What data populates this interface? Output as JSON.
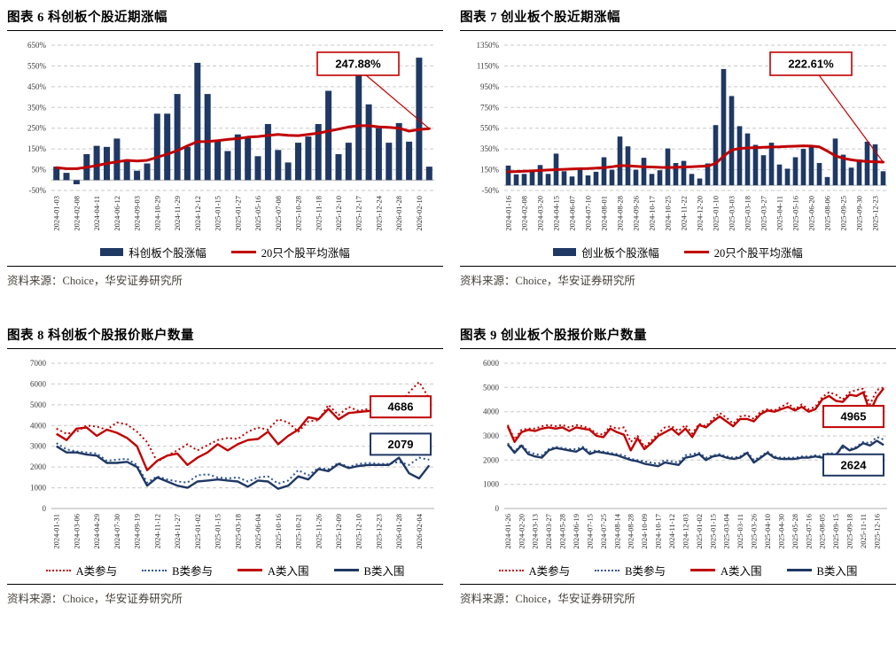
{
  "colors": {
    "navy": "#1f3864",
    "red": "#c00000",
    "blue_dotted": "#2f5496",
    "grid": "#c9c9c9",
    "axis": "#aeaeae"
  },
  "chart_data": [
    {
      "id": "fig6",
      "title": "图表 6 科创板个股近期涨幅",
      "source": "资料来源：Choice，华安证券研究所",
      "type": "bar",
      "ylim": [
        -50,
        650
      ],
      "ystep": 100,
      "ysuffix": "%",
      "grid": true,
      "legend_position": "bottom",
      "bar_color": "#1f3864",
      "line_color": "#c00000",
      "x_labels": [
        "2024-01-03",
        "2024-02-08",
        "2024-04-11",
        "2024-06-12",
        "2024-09-03",
        "2024-10-29",
        "2024-11-29",
        "2024-12-12",
        "2025-01-15",
        "2025-01-27",
        "2025-05-16",
        "2025-07-08",
        "2025-10-28",
        "2025-11-18",
        "2025-12-10",
        "2025-12-17",
        "2025-12-24",
        "2026-01-28",
        "2026-02-10"
      ],
      "bars": [
        65,
        35,
        -20,
        125,
        165,
        160,
        200,
        100,
        45,
        80,
        320,
        320,
        415,
        160,
        565,
        415,
        195,
        140,
        220,
        205,
        115,
        270,
        145,
        85,
        180,
        210,
        270,
        430,
        125,
        180,
        600,
        365,
        250,
        180,
        275,
        185,
        590,
        65
      ],
      "line": [
        60,
        55,
        55,
        62,
        70,
        80,
        88,
        95,
        92,
        95,
        110,
        125,
        142,
        165,
        185,
        186,
        190,
        196,
        200,
        207,
        210,
        215,
        220,
        216,
        214,
        220,
        226,
        236,
        246,
        256,
        262,
        262,
        256,
        254,
        250,
        236,
        244,
        248
      ],
      "line_name": "20只个股平均涨幅",
      "bars_name": "科创板个股涨幅",
      "annotations": [
        {
          "text": "247.88%",
          "color": "#c00000"
        }
      ],
      "legend": [
        {
          "label": "科创板个股涨幅",
          "swatch": "bar",
          "color": "#1f3864"
        },
        {
          "label": "20只个股平均涨幅",
          "swatch": "line",
          "color": "#c00000"
        }
      ]
    },
    {
      "id": "fig7",
      "title": "图表 7 创业板个股近期涨幅",
      "source": "资料来源：Choice，华安证券研究所",
      "type": "bar",
      "ylim": [
        -50,
        1350
      ],
      "ystep": 200,
      "ysuffix": "%",
      "grid": true,
      "legend_position": "bottom",
      "bar_color": "#1f3864",
      "line_color": "#c00000",
      "x_labels": [
        "2024-01-16",
        "2024-02-08",
        "2024-03-20",
        "2024-04-15",
        "2024-06-07",
        "2024-07-10",
        "2024-08-01",
        "2024-08-28",
        "2024-09-26",
        "2024-10-17",
        "2024-10-25",
        "2024-11-22",
        "2024-12-20",
        "2025-01-10",
        "2025-03-03",
        "2025-03-18",
        "2025-03-27",
        "2025-04-11",
        "2025-05-16",
        "2025-06-20",
        "2025-08-06",
        "2025-09-25",
        "2025-09-30",
        "2025-12-23"
      ],
      "bars": [
        190,
        105,
        110,
        135,
        195,
        110,
        305,
        135,
        85,
        165,
        95,
        130,
        270,
        150,
        470,
        375,
        150,
        265,
        110,
        145,
        355,
        215,
        235,
        110,
        65,
        210,
        580,
        1120,
        860,
        570,
        500,
        390,
        290,
        410,
        200,
        160,
        270,
        350,
        385,
        215,
        80,
        450,
        295,
        170,
        250,
        420,
        395,
        135
      ],
      "line": [
        130,
        133,
        136,
        139,
        143,
        147,
        151,
        154,
        157,
        160,
        162,
        165,
        170,
        178,
        190,
        188,
        183,
        179,
        176,
        173,
        171,
        173,
        176,
        179,
        182,
        186,
        210,
        280,
        340,
        355,
        360,
        363,
        366,
        369,
        371,
        374,
        377,
        380,
        378,
        370,
        330,
        285,
        260,
        245,
        235,
        230,
        227,
        223
      ],
      "line_name": "20只个股平均涨幅",
      "bars_name": "创业板个股涨幅",
      "annotations": [
        {
          "text": "222.61%",
          "color": "#c00000"
        }
      ],
      "legend": [
        {
          "label": "创业板个股涨幅",
          "swatch": "bar",
          "color": "#1f3864"
        },
        {
          "label": "20只个股平均涨幅",
          "swatch": "line",
          "color": "#c00000"
        }
      ]
    },
    {
      "id": "fig8",
      "title": "图表 8 科创板个股报价账户数量",
      "source": "资料来源：Choice，华安证券研究所",
      "type": "line",
      "ylim": [
        0,
        7000
      ],
      "ystep": 1000,
      "ysuffix": "",
      "grid": true,
      "legend_position": "bottom",
      "x_labels": [
        "2024-01-31",
        "2024-03-06",
        "2024-04-29",
        "2024-07-30",
        "2024-09-19",
        "2024-11-12",
        "2024-11-27",
        "2025-01-02",
        "2025-01-15",
        "2025-03-18",
        "2025-06-04",
        "2025-10-16",
        "2025-10-21",
        "2025-11-26",
        "2025-12-09",
        "2025-12-10",
        "2025-12-23",
        "2026-01-28",
        "2026-02-04"
      ],
      "series": [
        {
          "name": "A类参与",
          "style": "dotted",
          "color": "#c00000",
          "values": [
            3850,
            3600,
            3700,
            4000,
            3950,
            3800,
            4150,
            4050,
            3700,
            3200,
            2250,
            2550,
            2800,
            3100,
            2800,
            3050,
            3300,
            3400,
            3350,
            3700,
            3900,
            3800,
            4300,
            4150,
            3700,
            4200,
            4250,
            5000,
            4500,
            4900,
            4700,
            4800,
            4850,
            4900,
            5000,
            5600,
            6100,
            5300
          ]
        },
        {
          "name": "B类参与",
          "style": "dotted",
          "color": "#2f5496",
          "values": [
            3150,
            2850,
            2750,
            2700,
            2650,
            2300,
            2350,
            2400,
            2100,
            1250,
            1550,
            1400,
            1300,
            1250,
            1600,
            1650,
            1500,
            1450,
            1500,
            1300,
            1500,
            1550,
            1200,
            1350,
            1850,
            1600,
            1950,
            1900,
            2200,
            2000,
            2150,
            2200,
            2150,
            2150,
            2250,
            2100,
            2450,
            2350
          ]
        },
        {
          "name": "A类入围",
          "style": "solid",
          "color": "#c00000",
          "values": [
            3600,
            3300,
            3850,
            3900,
            3500,
            3800,
            3650,
            3400,
            3000,
            1850,
            2300,
            2550,
            2650,
            2100,
            2450,
            2700,
            3100,
            2800,
            3100,
            3300,
            3350,
            3700,
            3100,
            3500,
            3800,
            4400,
            4300,
            4800,
            4300,
            4600,
            4650,
            4700,
            4750,
            4800,
            5000,
            4900,
            4750,
            4686
          ]
        },
        {
          "name": "B类入围",
          "style": "solid",
          "color": "#1f3864",
          "values": [
            3000,
            2700,
            2700,
            2600,
            2550,
            2200,
            2200,
            2250,
            2000,
            1100,
            1500,
            1300,
            1100,
            1000,
            1300,
            1350,
            1400,
            1350,
            1300,
            1050,
            1350,
            1300,
            950,
            1100,
            1550,
            1400,
            1900,
            1800,
            2150,
            1950,
            2050,
            2100,
            2100,
            2100,
            2450,
            1700,
            1450,
            2079
          ]
        }
      ],
      "annotations": [
        {
          "text": "4686",
          "color": "#c00000",
          "at": 4900
        },
        {
          "text": "2079",
          "color": "#1f3864",
          "at": 3100
        }
      ],
      "legend": [
        {
          "label": "A类参与",
          "swatch": "dotted",
          "color": "#c00000"
        },
        {
          "label": "B类参与",
          "swatch": "dotted",
          "color": "#2f5496"
        },
        {
          "label": "A类入围",
          "swatch": "line",
          "color": "#c00000"
        },
        {
          "label": "B类入围",
          "swatch": "line",
          "color": "#1f3864"
        }
      ]
    },
    {
      "id": "fig9",
      "title": "图表 9 创业板个股报价账户数量",
      "source": "资料来源：Choice，华安证券研究所",
      "type": "line",
      "ylim": [
        0,
        6000
      ],
      "ystep": 1000,
      "ysuffix": "",
      "grid": true,
      "legend_position": "bottom",
      "x_labels": [
        "2024-01-26",
        "2024-02-20",
        "2024-03-13",
        "2024-03-27",
        "2024-05-28",
        "2024-06-19",
        "2024-07-15",
        "2024-07-25",
        "2024-08-14",
        "2024-08-28",
        "2024-10-09",
        "2024-10-17",
        "2024-11-12",
        "2024-12-03",
        "2025-01-02",
        "2025-01-15",
        "2025-03-04",
        "2025-03-11",
        "2025-03-26",
        "2025-04-10",
        "2025-04-30",
        "2025-05-28",
        "2025-07-16",
        "2025-08-05",
        "2025-09-15",
        "2025-09-18",
        "2025-11-11",
        "2025-12-16"
      ],
      "series": [
        {
          "name": "A类参与",
          "style": "dotted",
          "color": "#c00000",
          "values": [
            3450,
            2850,
            3250,
            3300,
            3300,
            3400,
            3450,
            3400,
            3450,
            3350,
            3450,
            3400,
            3300,
            3100,
            3050,
            3400,
            3300,
            3350,
            2750,
            3000,
            2550,
            2800,
            3100,
            3350,
            3400,
            3200,
            3450,
            3100,
            3500,
            3400,
            3700,
            3950,
            3750,
            3500,
            3800,
            3850,
            3700,
            4000,
            4100,
            4050,
            4200,
            4350,
            4100,
            4300,
            4100,
            4200,
            4600,
            4800,
            4700,
            4500,
            4800,
            4900,
            4950,
            4300,
            4900,
            5000
          ]
        },
        {
          "name": "B类参与",
          "style": "dotted",
          "color": "#2f5496",
          "values": [
            2700,
            2350,
            2650,
            2350,
            2250,
            2200,
            2450,
            2550,
            2500,
            2450,
            2450,
            2550,
            2350,
            2400,
            2350,
            2300,
            2250,
            2200,
            2050,
            2000,
            1950,
            1900,
            1850,
            2000,
            1950,
            1900,
            2200,
            2250,
            2300,
            2100,
            2200,
            2250,
            2150,
            2100,
            2150,
            2350,
            2000,
            2150,
            2350,
            2150,
            2100,
            2100,
            2100,
            2150,
            2150,
            2200,
            2150,
            2300,
            2250,
            2500,
            2450,
            2550,
            2750,
            2700,
            2950,
            2850
          ]
        },
        {
          "name": "A类入围",
          "style": "solid",
          "color": "#c00000",
          "values": [
            3400,
            2750,
            3150,
            3250,
            3200,
            3300,
            3350,
            3300,
            3350,
            3200,
            3350,
            3300,
            3250,
            3000,
            2950,
            3300,
            3150,
            3050,
            2400,
            2900,
            2450,
            2700,
            3000,
            3150,
            3300,
            3050,
            3300,
            2950,
            3450,
            3350,
            3600,
            3800,
            3600,
            3400,
            3700,
            3700,
            3600,
            3900,
            4050,
            4000,
            4100,
            4200,
            4050,
            4200,
            4000,
            4100,
            4500,
            4650,
            4450,
            4400,
            4700,
            4650,
            4800,
            4000,
            4600,
            4965
          ]
        },
        {
          "name": "B类入围",
          "style": "solid",
          "color": "#1f3864",
          "values": [
            2650,
            2300,
            2600,
            2250,
            2150,
            2100,
            2400,
            2500,
            2450,
            2400,
            2350,
            2500,
            2250,
            2350,
            2300,
            2250,
            2200,
            2100,
            2000,
            1950,
            1850,
            1800,
            1750,
            1900,
            1850,
            1800,
            2100,
            2150,
            2250,
            2000,
            2150,
            2200,
            2100,
            2050,
            2100,
            2300,
            1900,
            2100,
            2300,
            2100,
            2050,
            2050,
            2050,
            2100,
            2100,
            2150,
            2100,
            2250,
            2200,
            2600,
            2400,
            2500,
            2700,
            2600,
            2800,
            2624
          ]
        }
      ],
      "annotations": [
        {
          "text": "4965",
          "color": "#c00000",
          "at": 3800
        },
        {
          "text": "2624",
          "color": "#1f3864",
          "at": 1800
        }
      ],
      "legend": [
        {
          "label": "A类参与",
          "swatch": "dotted",
          "color": "#c00000"
        },
        {
          "label": "B类参与",
          "swatch": "dotted",
          "color": "#2f5496"
        },
        {
          "label": "A类入围",
          "swatch": "line",
          "color": "#c00000"
        },
        {
          "label": "B类入围",
          "swatch": "line",
          "color": "#1f3864"
        }
      ]
    }
  ]
}
